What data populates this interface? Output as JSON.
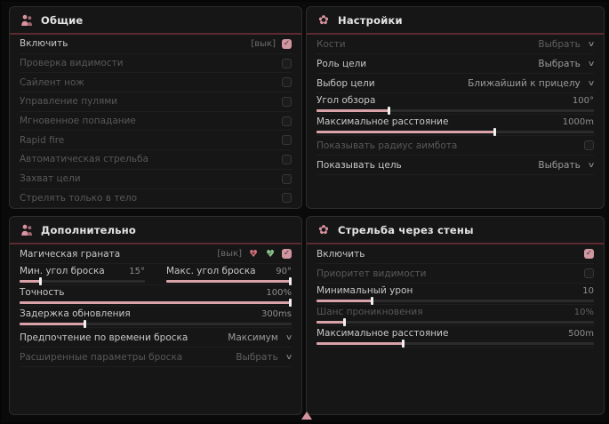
{
  "colors": {
    "page_bg": "#0a0a0a",
    "panel_bg": "#161616",
    "header_line": "#5c2a30",
    "accent_slider": "#d9a2a9",
    "checkbox_checked": "#d097a1",
    "heart_red": "#d4727e",
    "heart_green": "#8bc48b",
    "icon_pink": "#d893a0"
  },
  "pointer_icon": "triangle-up",
  "panels": [
    {
      "title": "Общие",
      "icon": "aim-person-icon",
      "rows": [
        {
          "type": "toggle",
          "label": "Включить",
          "hint": "[вык]",
          "checked": true
        },
        {
          "type": "toggle",
          "label": "Проверка видимости",
          "checked": false,
          "dim": true
        },
        {
          "type": "toggle",
          "label": "Сайлент нож",
          "checked": false,
          "dim": true
        },
        {
          "type": "toggle",
          "label": "Управление пулями",
          "checked": false,
          "dim": true
        },
        {
          "type": "toggle",
          "label": "Мгновенное попадание",
          "checked": false,
          "dim": true
        },
        {
          "type": "toggle",
          "label": "Rapid fire",
          "checked": false,
          "dim": true
        },
        {
          "type": "toggle",
          "label": "Автоматическая стрельба",
          "checked": false,
          "dim": true
        },
        {
          "type": "toggle",
          "label": "Захват цели",
          "checked": false,
          "dim": true
        },
        {
          "type": "toggle",
          "label": "Стрелять только в тело",
          "checked": false,
          "dim": true
        }
      ]
    },
    {
      "title": "Настройки",
      "icon": "flower-icon",
      "rows": [
        {
          "type": "select",
          "label": "Кости",
          "value": "Выбрать",
          "dim": true
        },
        {
          "type": "select",
          "label": "Роль цели",
          "value": "Выбрать"
        },
        {
          "type": "select",
          "label": "Выбор цели",
          "value": "Ближайший к прицелу"
        },
        {
          "type": "slider",
          "label": "Угол обзора",
          "value": "100°",
          "fill": 26
        },
        {
          "type": "slider",
          "label": "Максимальное расстояние",
          "value": "1000m",
          "fill": 64
        },
        {
          "type": "toggle",
          "label": "Показывать радиус аимбота",
          "checked": false,
          "dim": true
        },
        {
          "type": "select",
          "label": "Показывать цель",
          "value": "Выбрать"
        }
      ]
    },
    {
      "title": "Дополнительно",
      "icon": "aim-person-icon",
      "rows": [
        {
          "type": "toggle",
          "label": "Магическая граната",
          "hint": "[вык]",
          "icons": [
            "heart-x",
            "heart-check"
          ],
          "checked": true
        },
        {
          "type": "pair",
          "items": [
            {
              "label": "Мин. угол броска",
              "value": "15°",
              "fill": 16
            },
            {
              "label": "Макс. угол броска",
              "value": "90°",
              "fill": 100
            }
          ]
        },
        {
          "type": "slider",
          "label": "Точность",
          "value": "100%",
          "fill": 100
        },
        {
          "type": "slider",
          "label": "Задержка обновления",
          "value": "300ms",
          "fill": 24
        },
        {
          "type": "select",
          "label": "Предпочтение по времени броска",
          "value": "Максимум"
        },
        {
          "type": "select",
          "label": "Расширенные параметры броска",
          "value": "Выбрать",
          "dim": true
        }
      ]
    },
    {
      "title": "Стрельба через стены",
      "icon": "flower-icon",
      "rows": [
        {
          "type": "toggle",
          "label": "Включить",
          "checked": true
        },
        {
          "type": "toggle",
          "label": "Приоритет видимости",
          "checked": false,
          "dim": true
        },
        {
          "type": "slider",
          "label": "Минимальный урон",
          "value": "10",
          "fill": 20
        },
        {
          "type": "slider",
          "label": "Шанс проникновения",
          "value": "10%",
          "fill": 10,
          "dim": true
        },
        {
          "type": "slider",
          "label": "Максимальное расстояние",
          "value": "500m",
          "fill": 31
        }
      ]
    }
  ]
}
